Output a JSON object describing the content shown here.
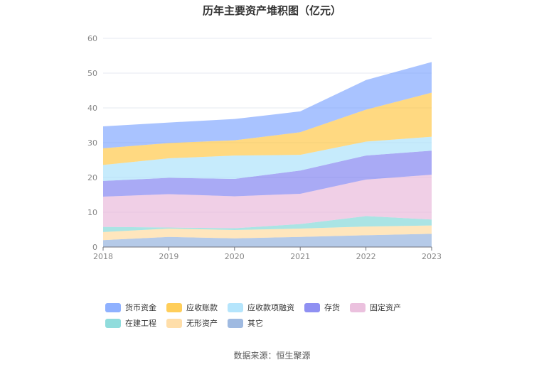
{
  "chart_data": {
    "type": "area",
    "stacked": true,
    "title": "历年主要资产堆积图（亿元）",
    "xlabel": "",
    "ylabel": "",
    "x": [
      "2018",
      "2019",
      "2020",
      "2021",
      "2022",
      "2023"
    ],
    "ylim": [
      0,
      60
    ],
    "yticks": [
      0,
      10,
      20,
      30,
      40,
      50,
      60
    ],
    "grid": true,
    "legend_position": "bottom",
    "series": [
      {
        "name": "其它",
        "color": "#8eaedc",
        "values": [
          2.0,
          2.9,
          2.5,
          2.9,
          3.4,
          3.8
        ]
      },
      {
        "name": "无形资产",
        "color": "#ffd89a",
        "values": [
          2.3,
          2.4,
          2.4,
          2.4,
          2.5,
          2.4
        ]
      },
      {
        "name": "在建工程",
        "color": "#7dd6d6",
        "values": [
          1.5,
          0.3,
          0.5,
          1.3,
          3.0,
          1.7
        ]
      },
      {
        "name": "固定资产",
        "color": "#e8b6d8",
        "values": [
          8.7,
          9.6,
          9.2,
          8.7,
          10.5,
          12.9
        ]
      },
      {
        "name": "存货",
        "color": "#7b7cf0",
        "values": [
          4.5,
          4.7,
          5.0,
          6.7,
          6.9,
          6.9
        ]
      },
      {
        "name": "应收款项融资",
        "color": "#a8e0fb",
        "values": [
          4.6,
          5.6,
          6.7,
          4.5,
          4.0,
          4.0
        ]
      },
      {
        "name": "应收账款",
        "color": "#ffc53d",
        "values": [
          4.8,
          4.4,
          4.4,
          6.5,
          9.2,
          12.7
        ]
      },
      {
        "name": "货币资金",
        "color": "#7ba3ff",
        "values": [
          6.3,
          5.9,
          6.1,
          6.0,
          8.5,
          8.8
        ]
      }
    ],
    "legend_order": [
      "货币资金",
      "应收账款",
      "应收款项融资",
      "存货",
      "固定资产",
      "在建工程",
      "无形资产",
      "其它"
    ]
  },
  "source": "数据来源：恒生聚源"
}
